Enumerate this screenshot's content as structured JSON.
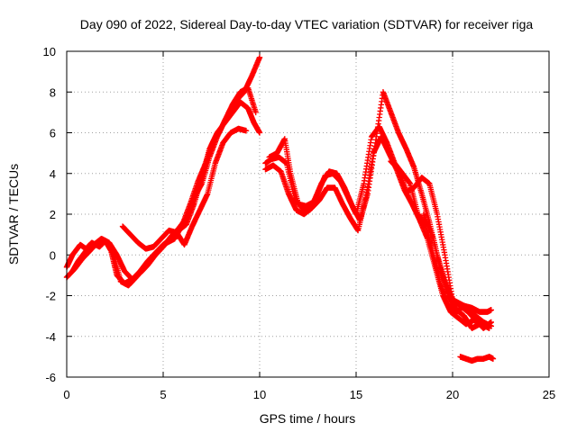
{
  "chart_data": {
    "type": "scatter",
    "title": "Day 090 of 2022, Sidereal Day-to-day VTEC variation (SDTVAR) for receiver riga",
    "xlabel": "GPS time / hours",
    "ylabel": "SDTVAR / TECUs",
    "xlim": [
      0,
      25
    ],
    "ylim": [
      -6,
      10
    ],
    "xticks": [
      "0",
      "5",
      "10",
      "15",
      "20",
      "25"
    ],
    "yticks": [
      "-6",
      "-4",
      "-2",
      "0",
      "2",
      "4",
      "6",
      "8",
      "10"
    ],
    "grid": true,
    "marker": "plus",
    "color": "#ff0000",
    "series": [
      {
        "name": "trace-1",
        "x": [
          0.0,
          0.3,
          0.7,
          1.0,
          1.3,
          1.7,
          2.0,
          2.3,
          2.6,
          3.0,
          3.4,
          3.8,
          4.2,
          4.6,
          5.0,
          5.4,
          5.8,
          6.2,
          6.6,
          7.0,
          7.4,
          7.8,
          8.2,
          8.6,
          9.0,
          9.4,
          9.7,
          10.0
        ],
        "y": [
          -0.6,
          0.0,
          0.5,
          0.3,
          0.6,
          0.4,
          0.7,
          0.2,
          -1.0,
          -1.4,
          -1.2,
          -0.8,
          -0.3,
          0.1,
          0.5,
          0.8,
          1.2,
          1.5,
          2.5,
          3.8,
          5.2,
          6.0,
          6.5,
          7.0,
          7.5,
          7.2,
          6.5,
          6.0
        ]
      },
      {
        "name": "trace-2",
        "x": [
          0.0,
          0.4,
          0.8,
          1.2,
          1.6,
          2.0,
          2.4,
          2.8,
          3.2,
          3.6,
          4.0,
          4.4,
          4.8,
          5.2,
          5.6,
          6.0,
          6.4,
          6.8,
          7.2,
          7.6,
          8.0,
          8.4,
          8.8,
          9.2,
          9.6,
          10.0
        ],
        "y": [
          -1.1,
          -0.7,
          -0.2,
          0.2,
          0.6,
          0.7,
          0.1,
          -1.3,
          -1.5,
          -1.1,
          -0.6,
          -0.2,
          0.3,
          0.6,
          0.8,
          1.5,
          2.5,
          3.6,
          4.5,
          5.6,
          6.2,
          7.0,
          7.6,
          8.0,
          8.8,
          9.7
        ]
      },
      {
        "name": "trace-3",
        "x": [
          0.3,
          0.6,
          1.0,
          1.4,
          1.8,
          2.2,
          2.6,
          3.0,
          3.4,
          3.8,
          4.2,
          4.6,
          5.0,
          5.4,
          5.8,
          6.2,
          6.6,
          7.0,
          7.4,
          7.8,
          8.2,
          8.6,
          9.0,
          9.4,
          9.8
        ],
        "y": [
          -0.8,
          -0.3,
          0.2,
          0.5,
          0.8,
          0.6,
          0.0,
          -0.8,
          -1.2,
          -0.9,
          -0.5,
          0.0,
          0.4,
          0.9,
          1.3,
          1.8,
          2.8,
          3.5,
          4.8,
          5.8,
          6.6,
          7.4,
          8.0,
          8.2,
          7.0
        ]
      },
      {
        "name": "trace-4",
        "x": [
          2.9,
          3.3,
          3.7,
          4.1,
          4.5,
          4.9,
          5.3,
          5.7,
          6.1,
          6.5,
          6.9,
          7.3,
          7.7,
          8.1,
          8.5,
          8.9,
          9.3
        ],
        "y": [
          1.4,
          1.0,
          0.6,
          0.3,
          0.4,
          0.8,
          1.2,
          1.1,
          0.5,
          1.4,
          2.2,
          3.0,
          4.5,
          5.5,
          6.0,
          6.2,
          6.1
        ]
      },
      {
        "name": "trace-5",
        "x": [
          10.3,
          10.6,
          11.0,
          11.4,
          11.8,
          12.2,
          12.6,
          13.0,
          13.4,
          13.8,
          14.2,
          14.6,
          15.0,
          15.4,
          15.8,
          16.2,
          16.6,
          17.0,
          17.4,
          17.8,
          18.2,
          18.6,
          19.0,
          19.4,
          19.8,
          20.2,
          20.6,
          21.0,
          21.4,
          21.8,
          22.0
        ],
        "y": [
          4.5,
          4.7,
          4.8,
          4.5,
          2.8,
          2.3,
          2.2,
          3.0,
          3.9,
          4.0,
          3.6,
          2.8,
          2.0,
          3.5,
          5.8,
          6.3,
          5.5,
          4.5,
          4.0,
          3.5,
          2.0,
          1.5,
          0.0,
          -1.5,
          -2.5,
          -2.8,
          -2.5,
          -2.6,
          -2.8,
          -2.8,
          -2.7
        ]
      },
      {
        "name": "trace-6",
        "x": [
          10.3,
          10.7,
          11.1,
          11.5,
          11.9,
          12.3,
          12.7,
          13.1,
          13.5,
          13.9,
          14.3,
          14.7,
          15.1,
          15.5,
          15.9,
          16.3,
          16.7,
          17.1,
          17.5,
          17.9,
          18.3,
          18.7,
          19.1,
          19.5,
          19.9,
          20.3,
          20.7,
          21.1,
          21.5,
          21.9
        ],
        "y": [
          4.2,
          4.4,
          4.1,
          3.0,
          2.2,
          2.0,
          2.3,
          2.7,
          3.3,
          3.3,
          2.5,
          1.8,
          1.2,
          2.8,
          5.0,
          5.8,
          5.0,
          4.2,
          3.2,
          2.5,
          1.7,
          0.8,
          -0.6,
          -2.0,
          -2.8,
          -3.1,
          -3.4,
          -3.2,
          -3.4,
          -3.6
        ]
      },
      {
        "name": "trace-7",
        "x": [
          10.5,
          10.9,
          11.3,
          11.6,
          12.0,
          12.4,
          12.8,
          13.2,
          13.6,
          14.0,
          14.4,
          14.8,
          15.2,
          15.6,
          16.0,
          16.4,
          16.8,
          17.2,
          17.6,
          18.0,
          18.4,
          18.8,
          19.2,
          19.6,
          20.0,
          20.4,
          20.8,
          21.2,
          21.6,
          22.0
        ],
        "y": [
          4.8,
          5.0,
          5.7,
          4.0,
          2.5,
          2.4,
          2.6,
          3.5,
          4.1,
          4.0,
          3.3,
          2.4,
          1.7,
          3.0,
          5.5,
          8.0,
          7.0,
          6.0,
          5.2,
          4.3,
          3.0,
          1.6,
          0.0,
          -1.3,
          -2.2,
          -2.5,
          -2.8,
          -3.2,
          -3.6,
          -3.3
        ]
      },
      {
        "name": "trace-8",
        "x": [
          16.8,
          17.2,
          17.6,
          18.0,
          18.4,
          18.8,
          19.2,
          19.6,
          20.0,
          20.4,
          20.8,
          21.2,
          21.6,
          22.0
        ],
        "y": [
          4.6,
          4.2,
          3.1,
          3.3,
          3.8,
          3.5,
          2.0,
          0.0,
          -2.2,
          -2.4,
          -2.6,
          -3.0,
          -3.3,
          -3.5
        ]
      },
      {
        "name": "trace-9",
        "x": [
          18.5,
          19.0,
          19.4,
          19.8,
          20.2,
          20.6,
          21.0,
          21.4,
          21.8
        ],
        "y": [
          2.0,
          0.8,
          -0.8,
          -2.0,
          -2.7,
          -3.0,
          -3.6,
          -3.4,
          -3.5
        ]
      },
      {
        "name": "trace-10",
        "x": [
          20.4,
          20.7,
          21.0,
          21.3,
          21.6,
          21.9,
          22.1
        ],
        "y": [
          -5.0,
          -5.1,
          -5.2,
          -5.1,
          -5.1,
          -5.0,
          -5.1
        ]
      }
    ]
  }
}
